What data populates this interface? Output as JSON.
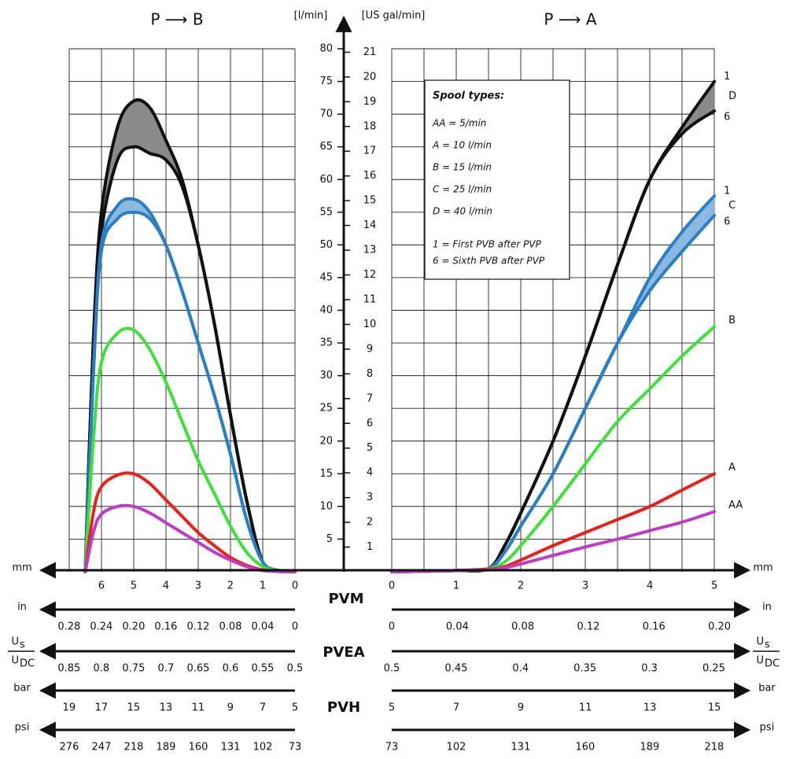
{
  "chart_data": [
    {
      "type": "line",
      "title": "P ⟶ B",
      "xlabel": "mm",
      "xlim": [
        0,
        7.8
      ],
      "xticks": [
        0,
        1,
        2,
        3,
        4,
        5,
        6
      ],
      "ylabel": "[l/min]",
      "ylim": [
        0,
        80
      ],
      "yticks": [
        5,
        10,
        15,
        20,
        25,
        30,
        35,
        40,
        45,
        50,
        55,
        60,
        65,
        70,
        75,
        80
      ],
      "y2label": "[US gal/min]",
      "y2lim": [
        0,
        21.14
      ],
      "y2ticks": [
        1,
        2,
        3,
        4,
        5,
        6,
        7,
        8,
        9,
        10,
        11,
        12,
        13,
        14,
        15,
        16,
        17,
        18,
        19,
        20,
        21
      ],
      "grid": true,
      "x": [
        0,
        0.5,
        1,
        1.5,
        2,
        2.5,
        3,
        3.5,
        4,
        4.5,
        5,
        5.5,
        6,
        6.25,
        6.5
      ],
      "series": [
        {
          "color": "#111111",
          "values": [
            0,
            0.2,
            1.5,
            11,
            24,
            38,
            50,
            60,
            66,
            71,
            72,
            68,
            55,
            35,
            0
          ]
        },
        {
          "color": "#111111",
          "band_color": "#8a8a8a",
          "values": [
            0,
            0.2,
            1.5,
            11,
            24,
            38,
            50,
            59,
            63,
            64,
            65,
            63,
            52,
            35,
            0
          ]
        },
        {
          "color": "#2a7fc4",
          "values": [
            0,
            0.2,
            1.5,
            8,
            18,
            27,
            35,
            43,
            50,
            55,
            57,
            56,
            50,
            30,
            0
          ]
        },
        {
          "color": "#2a7fc4",
          "band_color": "#8db8e0",
          "values": [
            0,
            0.2,
            1.5,
            8,
            18,
            27,
            35,
            43,
            50,
            54,
            55,
            54,
            49,
            30,
            0
          ]
        },
        {
          "color": "#3ee03a",
          "values": [
            0,
            0.1,
            0.8,
            3,
            7,
            12,
            17,
            23,
            29,
            34,
            37,
            36.5,
            32,
            20,
            0
          ]
        },
        {
          "color": "#e8221b",
          "values": [
            0,
            0.05,
            0.3,
            1,
            2.2,
            4,
            6,
            8.5,
            11,
            13.5,
            15,
            14.8,
            13,
            9,
            0
          ]
        },
        {
          "color": "#c03bc8",
          "values": [
            0,
            0.05,
            0.2,
            0.8,
            1.8,
            3,
            4.5,
            6,
            7.5,
            9,
            10,
            10,
            8.8,
            6,
            0
          ]
        }
      ],
      "secondary_axes": [
        {
          "label": "in",
          "xlim": [
            0,
            0.312
          ],
          "xticks": [
            {
              "value": 0,
              "label": "0"
            },
            {
              "value": 0.04,
              "label": "0.04"
            },
            {
              "value": 0.08,
              "label": "0.08"
            },
            {
              "value": 0.12,
              "label": "0.12"
            },
            {
              "value": 0.16,
              "label": "0.16"
            },
            {
              "value": 0.2,
              "label": "0.20"
            },
            {
              "value": 0.24,
              "label": "0.24"
            },
            {
              "value": 0.28,
              "label": "0.28"
            }
          ]
        },
        {
          "label": {
            "top": "U",
            "top_sub": "s",
            "bottom": "U",
            "bottom_sub": "DC"
          },
          "xlim": [
            0.5,
            0.89
          ],
          "xticks": [
            0.5,
            0.55,
            0.6,
            0.65,
            0.7,
            0.75,
            0.8,
            0.85
          ]
        },
        {
          "label": "bar",
          "xlim": [
            5,
            20.6
          ],
          "xticks": [
            5,
            7,
            9,
            11,
            13,
            15,
            17,
            19
          ]
        },
        {
          "label": "psi",
          "xlim": [
            73,
            299.3
          ],
          "xticks": [
            73,
            102,
            131,
            160,
            189,
            218,
            247,
            276
          ]
        }
      ]
    },
    {
      "type": "line",
      "title": "P ⟶ A",
      "xlabel": "mm",
      "xlim": [
        0,
        5.51
      ],
      "xticks": [
        0,
        1,
        2,
        3,
        4,
        5
      ],
      "ylim": [
        0,
        80
      ],
      "grid": true,
      "x": [
        0,
        0.5,
        1,
        1.5,
        1.75,
        2,
        2.5,
        3,
        3.5,
        4,
        4.5,
        5
      ],
      "series": [
        {
          "name": "D",
          "end_label": "1",
          "color": "#111111",
          "values": [
            0,
            0.1,
            0.2,
            0.5,
            4,
            9,
            20,
            33,
            47,
            60,
            68,
            75
          ]
        },
        {
          "end_label": "6",
          "color": "#111111",
          "band_color": "#8a8a8a",
          "values": [
            0,
            0.1,
            0.2,
            0.5,
            4,
            9,
            20,
            33,
            47,
            60,
            67,
            70.5
          ]
        },
        {
          "name": "C",
          "end_label": "1",
          "color": "#2a7fc4",
          "values": [
            0,
            0.1,
            0.2,
            0.5,
            3,
            7,
            15,
            25,
            35,
            45,
            52,
            57.5
          ]
        },
        {
          "end_label": "6",
          "color": "#2a7fc4",
          "band_color": "#8db8e0",
          "values": [
            0,
            0.1,
            0.2,
            0.5,
            3,
            7,
            15,
            25,
            35,
            43,
            49,
            54.5
          ]
        },
        {
          "name": "B",
          "color": "#3ee03a",
          "values": [
            0,
            0.1,
            0.2,
            0.5,
            1.5,
            4,
            10,
            16.5,
            23,
            28,
            33,
            37.5
          ]
        },
        {
          "name": "A",
          "color": "#e8221b",
          "values": [
            0,
            0.1,
            0.2,
            0.4,
            0.8,
            1.8,
            4,
            6,
            8,
            10,
            12.5,
            15
          ]
        },
        {
          "name": "AA",
          "color": "#c03bc8",
          "values": [
            0,
            0.1,
            0.2,
            0.3,
            0.6,
            1.2,
            2.5,
            3.8,
            5,
            6.3,
            7.6,
            9.2
          ]
        }
      ],
      "secondary_axes": [
        {
          "label": "in",
          "xlim": [
            0,
            0.217
          ],
          "xticks": [
            {
              "value": 0,
              "label": "0"
            },
            {
              "value": 0.04,
              "label": "0.04"
            },
            {
              "value": 0.08,
              "label": "0.08"
            },
            {
              "value": 0.12,
              "label": "0.12"
            },
            {
              "value": 0.16,
              "label": "0.16"
            },
            {
              "value": 0.2,
              "label": "0.20"
            }
          ]
        },
        {
          "label": {
            "top": "U",
            "top_sub": "s",
            "bottom": "U",
            "bottom_sub": "DC"
          },
          "xlim": [
            0.5,
            0.224
          ],
          "xticks": [
            0.5,
            0.45,
            0.4,
            0.35,
            0.3,
            0.25
          ]
        },
        {
          "label": "bar",
          "xlim": [
            5,
            16.02
          ],
          "xticks": [
            5,
            7,
            9,
            11,
            13,
            15
          ]
        },
        {
          "label": "psi",
          "xlim": [
            73,
            232.9
          ],
          "xticks": [
            73,
            102,
            131,
            160,
            189,
            218
          ]
        }
      ]
    }
  ],
  "legend_box": {
    "title": "Spool types:",
    "lines": [
      "AA = 5/min",
      "A = 10 l/min",
      "B = 15 l/min",
      "C = 25 l/min",
      "D = 40 l/min",
      "1 = First PVB after PVP",
      "6 = Sixth PVB after PVP"
    ]
  },
  "section_labels": [
    "PVM",
    "PVEA",
    "PVH"
  ]
}
